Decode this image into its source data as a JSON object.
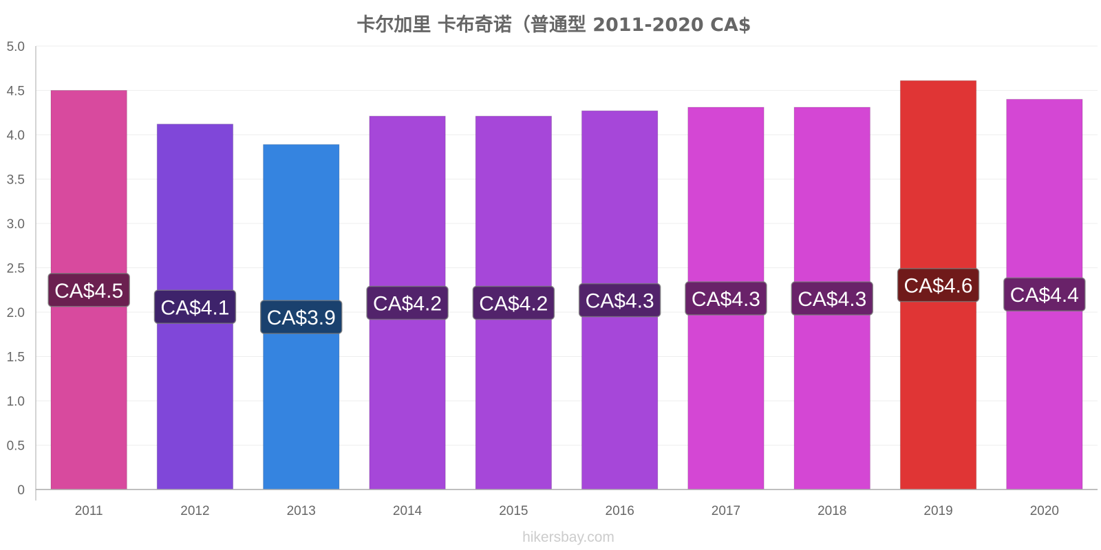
{
  "chart_data": {
    "type": "bar",
    "title": "卡尔加里 卡布奇诺（普通型 2011-2020 CA$",
    "xlabel": "",
    "ylabel": "",
    "ylim": [
      0,
      5.0
    ],
    "y_ticks": [
      "0",
      "0.5",
      "1.0",
      "1.5",
      "2.0",
      "2.5",
      "3.0",
      "3.5",
      "4.0",
      "4.5",
      "5.0"
    ],
    "grid": true,
    "legend": "none",
    "categories": [
      "2011",
      "2012",
      "2013",
      "2014",
      "2015",
      "2016",
      "2017",
      "2018",
      "2019",
      "2020"
    ],
    "values": [
      4.5,
      4.12,
      3.89,
      4.21,
      4.21,
      4.27,
      4.31,
      4.31,
      4.61,
      4.4
    ],
    "data_labels": [
      "CA$4.5",
      "CA$4.1",
      "CA$3.9",
      "CA$4.2",
      "CA$4.2",
      "CA$4.3",
      "CA$4.3",
      "CA$4.3",
      "CA$4.6",
      "CA$4.4"
    ],
    "colors": [
      "#d84a9e",
      "#8047d9",
      "#3584e0",
      "#a647d9",
      "#a647d9",
      "#a647d9",
      "#d447d4",
      "#d447d4",
      "#e03535",
      "#d447d4"
    ],
    "label_bg_colors": [
      "#6b2050",
      "#3e236b",
      "#1a416e",
      "#52236b",
      "#52236b",
      "#52236b",
      "#692269",
      "#692269",
      "#701a1a",
      "#692269"
    ]
  },
  "watermark": "hikersbay.com"
}
